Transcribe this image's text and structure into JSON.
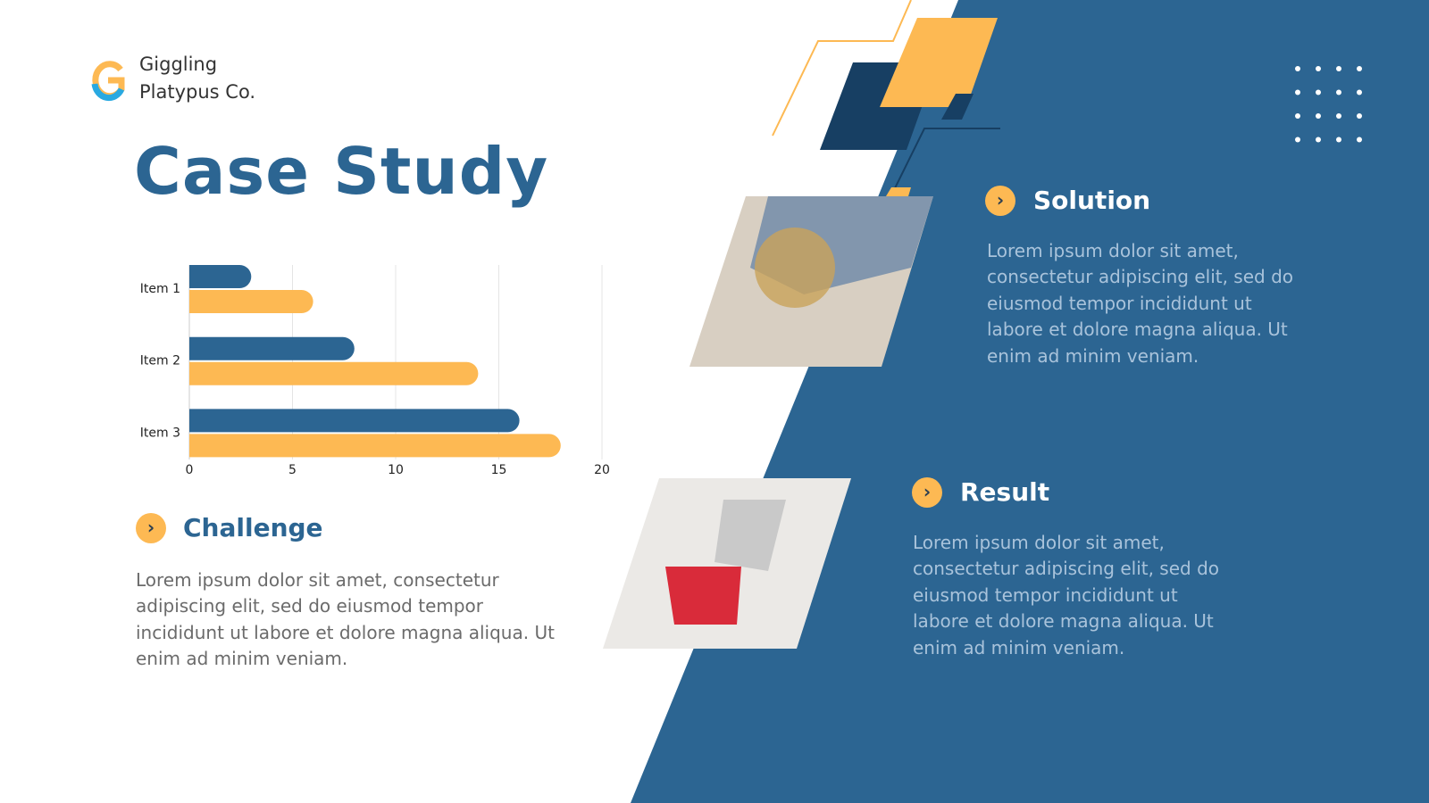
{
  "header": {
    "company_lines": [
      "Giggling",
      "Platypus Co."
    ]
  },
  "title": "Case Study",
  "chart_data": {
    "type": "hbar",
    "categories": [
      "Item 1",
      "Item 2",
      "Item 3"
    ],
    "series": [
      {
        "color": "#2c6592",
        "values": [
          3,
          8,
          16
        ]
      },
      {
        "color": "#fdb953",
        "values": [
          6,
          14,
          18
        ]
      }
    ],
    "xlim": [
      0,
      20
    ],
    "xticks": [
      0,
      5,
      10,
      15,
      20
    ],
    "grid": true
  },
  "challenge": {
    "heading": "Challenge",
    "lines": [
      "Lorem ipsum dolor sit amet, consectetur",
      "adipiscing elit, sed do eiusmod tempor",
      "incididunt ut labore et dolore magna aliqua. Ut",
      "enim ad minim veniam."
    ]
  },
  "solution": {
    "heading": "Solution",
    "lines": [
      "Lorem ipsum dolor sit amet,",
      "consectetur adipiscing elit, sed do",
      "eiusmod tempor incididunt ut",
      "labore et dolore magna aliqua. Ut",
      "enim ad minim veniam."
    ]
  },
  "result": {
    "heading": "Result",
    "lines": [
      "Lorem ipsum dolor sit amet,",
      "consectetur adipiscing elit, sed do",
      "eiusmod tempor incididunt ut",
      "labore et dolore magna aliqua. Ut",
      "enim ad minim veniam."
    ]
  }
}
